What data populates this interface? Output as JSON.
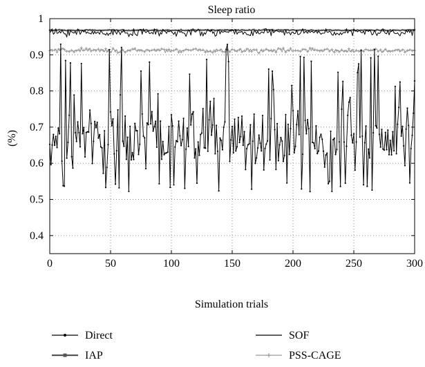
{
  "chart_data": {
    "type": "line",
    "title": "Sleep ratio",
    "xlabel": "Simulation trials",
    "ylabel": "(%)",
    "xlim": [
      0,
      300
    ],
    "ylim": [
      0.35,
      1.0
    ],
    "x_ticks": [
      0,
      50,
      100,
      150,
      200,
      250,
      300
    ],
    "x_tick_labels": [
      "0",
      "50",
      "100",
      "150",
      "200",
      "250",
      "300"
    ],
    "y_ticks": [
      0.4,
      0.5,
      0.6,
      0.7,
      0.8,
      0.9,
      1.0
    ],
    "y_tick_labels": [
      "0.4",
      "0.5",
      "0.6",
      "0.7",
      "0.8",
      "0.9",
      "1"
    ],
    "grid": true,
    "legend_position": "bottom",
    "series": [
      {
        "name": "Direct",
        "n_points": 301,
        "mean": 0.67,
        "min": 0.52,
        "max": 0.93,
        "color": "#000000",
        "marker": "dot"
      },
      {
        "name": "SOF",
        "n_points": 301,
        "mean": 0.962,
        "min": 0.945,
        "max": 0.972,
        "color": "#000000",
        "marker": "none"
      },
      {
        "name": "IAP",
        "n_points": 301,
        "mean": 0.968,
        "min": 0.966,
        "max": 0.97,
        "color": "#555555",
        "marker": "square"
      },
      {
        "name": "PSS-CAGE",
        "n_points": 301,
        "mean": 0.912,
        "min": 0.905,
        "max": 0.92,
        "color": "#999999",
        "marker": "cross"
      }
    ]
  }
}
